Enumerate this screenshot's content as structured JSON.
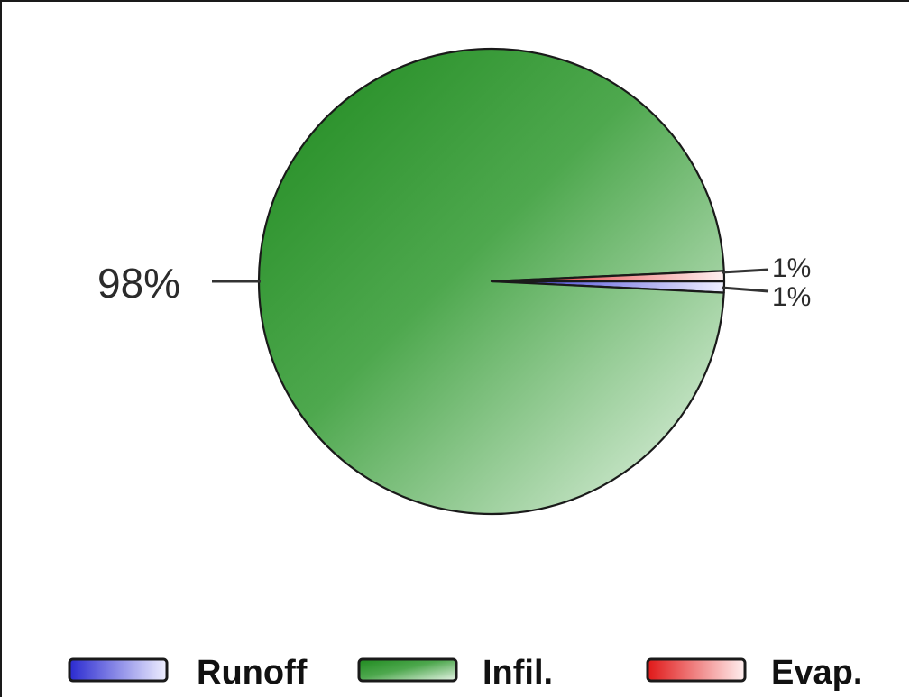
{
  "chart_data": {
    "type": "pie",
    "slices": [
      {
        "name": "Runoff",
        "value": 1,
        "label": "1%",
        "color": "#3b3bd6",
        "color_light": "#ececff"
      },
      {
        "name": "Infil.",
        "value": 98,
        "label": "98%",
        "color": "#2b8f2b",
        "color_light": "#e6f4e6"
      },
      {
        "name": "Evap.",
        "value": 1,
        "label": "1%",
        "color": "#e02a2a",
        "color_light": "#ffecec"
      }
    ],
    "legend": {
      "placement": "bottom",
      "entries": [
        "Runoff",
        "Infil.",
        "Evap."
      ]
    }
  }
}
